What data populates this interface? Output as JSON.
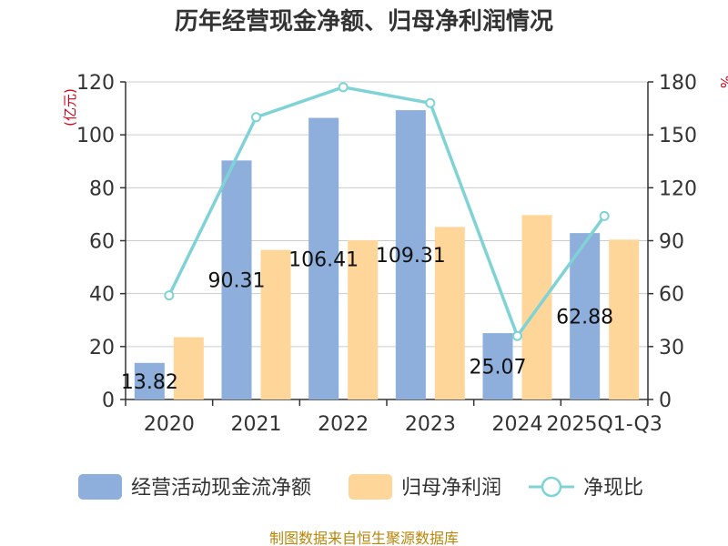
{
  "chart_data": {
    "type": "bar",
    "title": "历年经营现金净额、归母净利润情况",
    "categories": [
      "2020",
      "2021",
      "2022",
      "2023",
      "2024",
      "2025Q1-Q3"
    ],
    "series": [
      {
        "name": "经营活动现金流净额",
        "type": "bar",
        "axis": "left",
        "color": "#8eaedb",
        "values": [
          13.82,
          90.31,
          106.41,
          109.31,
          25.07,
          62.88
        ]
      },
      {
        "name": "归母净利润",
        "type": "bar",
        "axis": "left",
        "color": "#ffd699",
        "values": [
          23.5,
          56.5,
          60.2,
          65.2,
          69.7,
          60.4
        ]
      },
      {
        "name": "净现比",
        "type": "line",
        "axis": "right",
        "color": "#7fd3d6",
        "values": [
          59,
          160,
          177,
          168,
          36,
          104
        ]
      }
    ],
    "data_labels": [
      "13.82",
      "90.31",
      "106.41",
      "109.31",
      "25.07",
      "62.88"
    ],
    "y_left": {
      "unit": "(亿元)",
      "ylim": [
        0,
        120
      ],
      "ticks": [
        "0",
        "20",
        "40",
        "60",
        "80",
        "100",
        "120"
      ]
    },
    "y_right": {
      "unit": "%",
      "ylim": [
        0,
        180
      ],
      "ticks": [
        "0",
        "30",
        "60",
        "90",
        "120",
        "150",
        "180"
      ]
    },
    "grid": true,
    "legend_position": "bottom"
  },
  "source": "制图数据来自恒生聚源数据库"
}
